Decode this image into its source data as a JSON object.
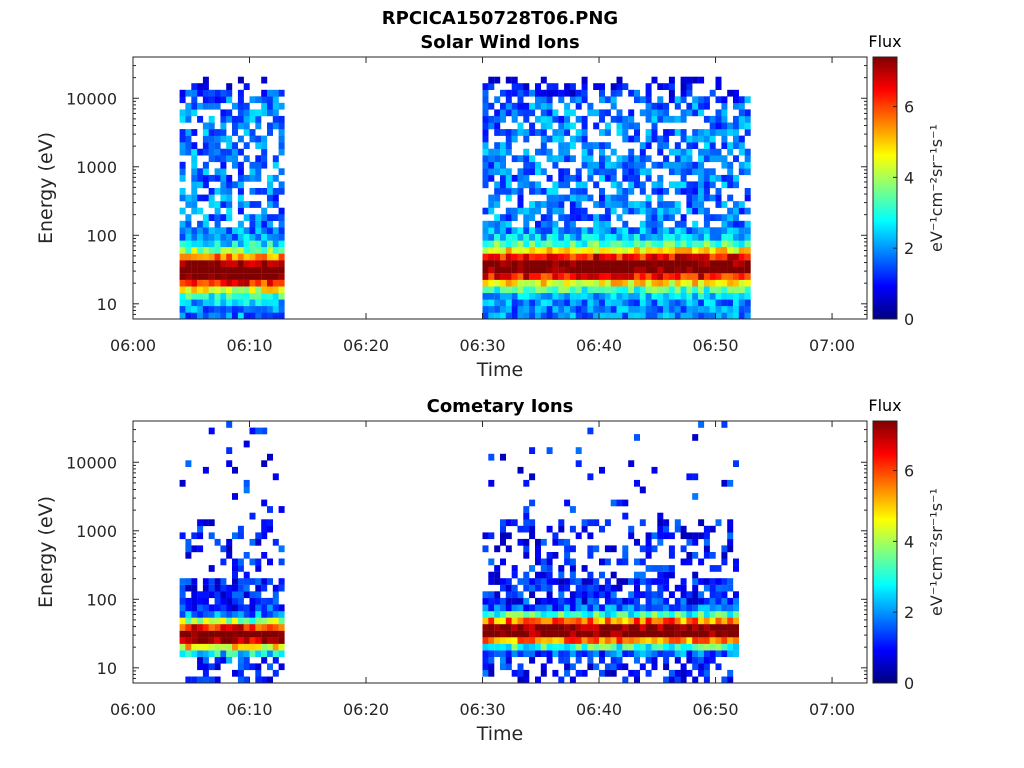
{
  "figure": {
    "title": "RPCICA150728T06.PNG"
  },
  "colorbar": {
    "label": "Flux",
    "units_text": "eV⁻¹cm⁻²sr⁻¹s⁻¹",
    "range": [
      0,
      7.4
    ],
    "ticks": [
      "0",
      "2",
      "4",
      "6"
    ],
    "colormap": "jet"
  },
  "chart_data": [
    {
      "type": "heatmap",
      "title": "Solar Wind Ions",
      "xlabel": "Time",
      "ylabel": "Energy (eV)",
      "x_ticks": [
        "06:00",
        "06:10",
        "06:20",
        "06:30",
        "06:40",
        "06:50",
        "07:00"
      ],
      "y_ticks": [
        "10",
        "100",
        "1000",
        "10000"
      ],
      "y_scale": "log",
      "ylim": [
        6,
        40000
      ],
      "xlim": [
        "06:00",
        "07:03"
      ],
      "data_segments": [
        {
          "start": "06:04",
          "end": "06:13",
          "peak_energy_eV": 30,
          "peak_flux": 6.5
        },
        {
          "start": "06:30",
          "end": "06:53",
          "peak_energy_eV": 35,
          "peak_flux": 6.0
        }
      ]
    },
    {
      "type": "heatmap",
      "title": "Cometary Ions",
      "xlabel": "Time",
      "ylabel": "Energy (eV)",
      "x_ticks": [
        "06:00",
        "06:10",
        "06:20",
        "06:30",
        "06:40",
        "06:50",
        "07:00"
      ],
      "y_ticks": [
        "10",
        "100",
        "1000",
        "10000"
      ],
      "y_scale": "log",
      "ylim": [
        6,
        40000
      ],
      "xlim": [
        "06:00",
        "07:03"
      ],
      "data_segments": [
        {
          "start": "06:04",
          "end": "06:13",
          "peak_energy_eV": 30,
          "peak_flux": 7.0
        },
        {
          "start": "06:30",
          "end": "06:52",
          "peak_energy_eV": 35,
          "peak_flux": 7.0
        }
      ]
    }
  ]
}
